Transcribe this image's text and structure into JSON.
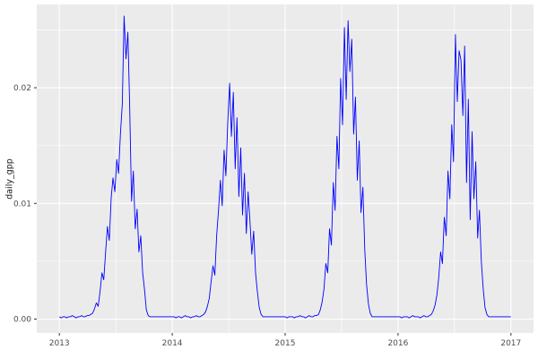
{
  "chart_data": {
    "type": "line",
    "title": "",
    "xlabel": "",
    "ylabel": "daily_gpp",
    "legend": "none",
    "grid": "on",
    "panel_bg": "#ebebeb",
    "figure_bg": "#ffffff",
    "grid_color": "#ffffff",
    "line_color": "#0000ff",
    "xlim": [
      2012.8,
      2017.2
    ],
    "ylim": [
      -0.0012,
      0.0272
    ],
    "x_ticks": [
      {
        "v": 2013,
        "label": "2013"
      },
      {
        "v": 2014,
        "label": "2014"
      },
      {
        "v": 2015,
        "label": "2015"
      },
      {
        "v": 2016,
        "label": "2016"
      },
      {
        "v": 2017,
        "label": "2017"
      }
    ],
    "y_ticks": [
      {
        "v": 0.0,
        "label": "0.00"
      },
      {
        "v": 0.01,
        "label": "0.01"
      },
      {
        "v": 0.02,
        "label": "0.02"
      }
    ],
    "x_minor": [
      2013.5,
      2014.5,
      2015.5,
      2016.5
    ],
    "y_minor": [
      0.005,
      0.015,
      0.025
    ],
    "x_start": 2013,
    "x_step": 0.01639344262,
    "values": [
      0.0002,
      0.0001,
      0.0002,
      0.0002,
      0.0001,
      0.0002,
      0.0002,
      0.0003,
      0.0002,
      0.0001,
      0.0002,
      0.0002,
      0.0003,
      0.0002,
      0.0002,
      0.0003,
      0.0003,
      0.0004,
      0.0005,
      0.0009,
      0.0014,
      0.0011,
      0.0024,
      0.004,
      0.0034,
      0.0058,
      0.008,
      0.0068,
      0.0105,
      0.0122,
      0.011,
      0.0138,
      0.0126,
      0.016,
      0.0186,
      0.0262,
      0.0225,
      0.0248,
      0.0185,
      0.0102,
      0.0128,
      0.0078,
      0.0095,
      0.0058,
      0.0072,
      0.004,
      0.0026,
      0.0008,
      0.0003,
      0.0002,
      0.0002,
      0.0002,
      0.0002,
      0.0002,
      0.0002,
      0.0002,
      0.0002,
      0.0002,
      0.0002,
      0.0002,
      0.0002,
      0.0002,
      0.0002,
      0.0001,
      0.0002,
      0.0002,
      0.0001,
      0.0002,
      0.0003,
      0.0002,
      0.0002,
      0.0001,
      0.0002,
      0.0002,
      0.0003,
      0.0002,
      0.0002,
      0.0003,
      0.0004,
      0.0006,
      0.0011,
      0.0018,
      0.0032,
      0.0046,
      0.0038,
      0.0072,
      0.0094,
      0.012,
      0.0098,
      0.0146,
      0.0124,
      0.017,
      0.0204,
      0.0158,
      0.0196,
      0.013,
      0.0174,
      0.0106,
      0.0148,
      0.009,
      0.0126,
      0.0074,
      0.011,
      0.0084,
      0.0056,
      0.0076,
      0.004,
      0.0024,
      0.001,
      0.0004,
      0.0002,
      0.0002,
      0.0002,
      0.0002,
      0.0002,
      0.0002,
      0.0002,
      0.0002,
      0.0002,
      0.0002,
      0.0002,
      0.0002,
      0.0002,
      0.0001,
      0.0002,
      0.0002,
      0.0002,
      0.0001,
      0.0002,
      0.0002,
      0.0003,
      0.0002,
      0.0002,
      0.0001,
      0.0002,
      0.0003,
      0.0002,
      0.0002,
      0.0003,
      0.0003,
      0.0004,
      0.0008,
      0.0015,
      0.0026,
      0.0048,
      0.004,
      0.0078,
      0.0064,
      0.0118,
      0.0094,
      0.0158,
      0.013,
      0.0208,
      0.0168,
      0.0252,
      0.019,
      0.0258,
      0.0214,
      0.0242,
      0.016,
      0.0192,
      0.012,
      0.0154,
      0.0092,
      0.0114,
      0.006,
      0.003,
      0.0013,
      0.0005,
      0.0002,
      0.0002,
      0.0002,
      0.0002,
      0.0002,
      0.0002,
      0.0002,
      0.0002,
      0.0002,
      0.0002,
      0.0002,
      0.0002,
      0.0002,
      0.0002,
      0.0002,
      0.0002,
      0.0001,
      0.0002,
      0.0002,
      0.0002,
      0.0001,
      0.0002,
      0.0003,
      0.0002,
      0.0002,
      0.0002,
      0.0001,
      0.0002,
      0.0003,
      0.0002,
      0.0002,
      0.0003,
      0.0004,
      0.0007,
      0.0012,
      0.0021,
      0.0036,
      0.0058,
      0.0048,
      0.0088,
      0.0072,
      0.0128,
      0.0104,
      0.0168,
      0.0136,
      0.0246,
      0.0188,
      0.0232,
      0.0224,
      0.0176,
      0.0236,
      0.0118,
      0.019,
      0.0086,
      0.0162,
      0.0104,
      0.0136,
      0.007,
      0.0094,
      0.005,
      0.0026,
      0.001,
      0.0004,
      0.0002,
      0.0002,
      0.0002,
      0.0002,
      0.0002,
      0.0002,
      0.0002,
      0.0002,
      0.0002,
      0.0002,
      0.0002,
      0.0002,
      0.0002
    ]
  }
}
